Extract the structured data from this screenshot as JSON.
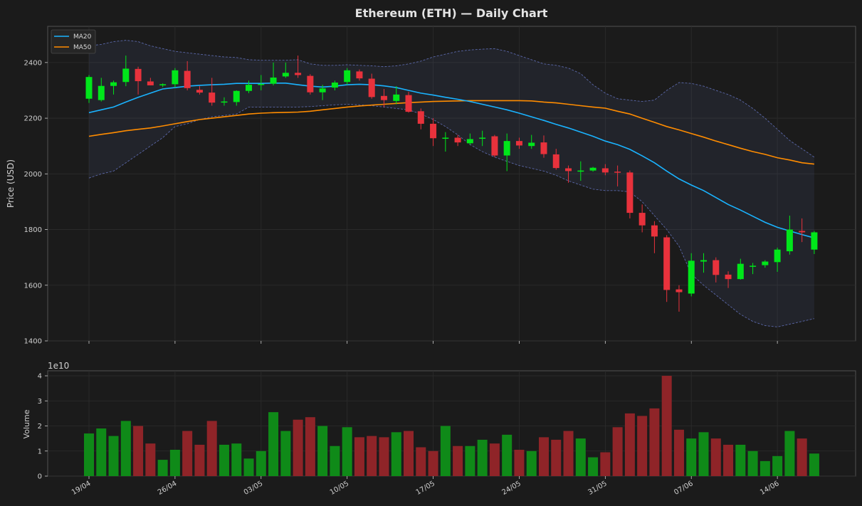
{
  "chart_data": [
    {
      "type": "candlestick",
      "title": "Ethereum (ETH) — Daily Chart",
      "ylabel": "Price (USD)",
      "ylim": [
        1400,
        2530
      ],
      "yticks": [
        1400,
        1600,
        1800,
        2000,
        2200,
        2400
      ],
      "xticks": [
        "19/04",
        "26/04",
        "03/05",
        "10/05",
        "17/05",
        "24/05",
        "31/05",
        "07/06",
        "14/06"
      ],
      "xtick_index": [
        0,
        7,
        14,
        21,
        28,
        35,
        42,
        49,
        56
      ],
      "legend": {
        "position": "top-left",
        "entries": [
          "MA20",
          "MA50"
        ]
      },
      "colors": {
        "up": "#00e61a",
        "down": "#e8323c",
        "ma20": "#1ab3ff",
        "ma50": "#ff8c00",
        "band": "#5a67a8"
      },
      "grid": true,
      "candles": [
        [
          2270,
          2355,
          2255,
          2348
        ],
        [
          2265,
          2345,
          2260,
          2316
        ],
        [
          2316,
          2335,
          2285,
          2329
        ],
        [
          2330,
          2425,
          2315,
          2378
        ],
        [
          2377,
          2385,
          2285,
          2333
        ],
        [
          2332,
          2345,
          2318,
          2318
        ],
        [
          2318,
          2325,
          2312,
          2322
        ],
        [
          2322,
          2380,
          2310,
          2372
        ],
        [
          2370,
          2405,
          2300,
          2308
        ],
        [
          2302,
          2315,
          2285,
          2292
        ],
        [
          2292,
          2345,
          2245,
          2256
        ],
        [
          2258,
          2275,
          2245,
          2260
        ],
        [
          2258,
          2300,
          2245,
          2298
        ],
        [
          2298,
          2335,
          2290,
          2320
        ],
        [
          2320,
          2355,
          2300,
          2323
        ],
        [
          2324,
          2400,
          2318,
          2346
        ],
        [
          2350,
          2400,
          2345,
          2363
        ],
        [
          2363,
          2425,
          2345,
          2355
        ],
        [
          2352,
          2358,
          2285,
          2293
        ],
        [
          2293,
          2320,
          2265,
          2307
        ],
        [
          2310,
          2335,
          2300,
          2328
        ],
        [
          2330,
          2380,
          2320,
          2372
        ],
        [
          2368,
          2375,
          2335,
          2343
        ],
        [
          2342,
          2360,
          2270,
          2276
        ],
        [
          2280,
          2305,
          2240,
          2265
        ],
        [
          2262,
          2315,
          2250,
          2285
        ],
        [
          2283,
          2295,
          2220,
          2223
        ],
        [
          2225,
          2235,
          2160,
          2180
        ],
        [
          2180,
          2200,
          2100,
          2128
        ],
        [
          2130,
          2150,
          2080,
          2130
        ],
        [
          2130,
          2140,
          2100,
          2113
        ],
        [
          2110,
          2145,
          2105,
          2125
        ],
        [
          2128,
          2155,
          2100,
          2130
        ],
        [
          2135,
          2140,
          2060,
          2066
        ],
        [
          2066,
          2145,
          2010,
          2118
        ],
        [
          2118,
          2130,
          2090,
          2102
        ],
        [
          2100,
          2140,
          2090,
          2112
        ],
        [
          2113,
          2138,
          2058,
          2071
        ],
        [
          2070,
          2090,
          2015,
          2021
        ],
        [
          2020,
          2030,
          1968,
          2010
        ],
        [
          2008,
          2045,
          1975,
          2012
        ],
        [
          2012,
          2025,
          2008,
          2022
        ],
        [
          2020,
          2035,
          1995,
          2005
        ],
        [
          2008,
          2030,
          1955,
          2005
        ],
        [
          2005,
          2012,
          1840,
          1860
        ],
        [
          1860,
          1890,
          1790,
          1815
        ],
        [
          1815,
          1830,
          1715,
          1775
        ],
        [
          1772,
          1780,
          1540,
          1583
        ],
        [
          1585,
          1600,
          1505,
          1575
        ],
        [
          1570,
          1715,
          1560,
          1688
        ],
        [
          1685,
          1715,
          1645,
          1690
        ],
        [
          1690,
          1700,
          1610,
          1637
        ],
        [
          1638,
          1650,
          1590,
          1622
        ],
        [
          1622,
          1695,
          1620,
          1677
        ],
        [
          1668,
          1680,
          1640,
          1670
        ],
        [
          1672,
          1690,
          1663,
          1685
        ],
        [
          1683,
          1735,
          1648,
          1728
        ],
        [
          1722,
          1850,
          1710,
          1800
        ],
        [
          1795,
          1840,
          1755,
          1790
        ],
        [
          1728,
          1795,
          1712,
          1790
        ]
      ],
      "ma20": [
        2220,
        2230,
        2240,
        2258,
        2275,
        2290,
        2305,
        2310,
        2315,
        2318,
        2320,
        2322,
        2325,
        2325,
        2325,
        2326,
        2326,
        2320,
        2315,
        2312,
        2315,
        2320,
        2322,
        2320,
        2316,
        2310,
        2300,
        2290,
        2283,
        2275,
        2268,
        2260,
        2250,
        2240,
        2230,
        2218,
        2205,
        2192,
        2178,
        2165,
        2150,
        2135,
        2118,
        2105,
        2088,
        2065,
        2040,
        2010,
        1982,
        1960,
        1940,
        1915,
        1890,
        1870,
        1848,
        1826,
        1808,
        1795,
        1782,
        1770
      ],
      "ma50": [
        2135,
        2142,
        2148,
        2155,
        2160,
        2165,
        2172,
        2180,
        2188,
        2195,
        2200,
        2205,
        2210,
        2215,
        2218,
        2220,
        2221,
        2222,
        2225,
        2230,
        2235,
        2240,
        2244,
        2247,
        2250,
        2253,
        2256,
        2258,
        2260,
        2261,
        2262,
        2263,
        2263,
        2263,
        2263,
        2263,
        2262,
        2258,
        2255,
        2250,
        2245,
        2240,
        2236,
        2225,
        2215,
        2200,
        2185,
        2170,
        2158,
        2145,
        2132,
        2118,
        2105,
        2092,
        2080,
        2070,
        2058,
        2050,
        2040,
        2035
      ],
      "bb_upper": [
        2460,
        2465,
        2475,
        2480,
        2475,
        2460,
        2450,
        2440,
        2435,
        2430,
        2425,
        2420,
        2418,
        2410,
        2408,
        2408,
        2408,
        2410,
        2395,
        2390,
        2390,
        2392,
        2390,
        2388,
        2385,
        2388,
        2395,
        2405,
        2420,
        2430,
        2440,
        2445,
        2448,
        2450,
        2440,
        2425,
        2410,
        2395,
        2390,
        2380,
        2360,
        2320,
        2290,
        2270,
        2265,
        2260,
        2265,
        2300,
        2328,
        2325,
        2315,
        2300,
        2285,
        2265,
        2235,
        2200,
        2160,
        2120,
        2090,
        2060
      ],
      "bb_lower": [
        1985,
        2000,
        2010,
        2040,
        2070,
        2100,
        2130,
        2170,
        2180,
        2195,
        2205,
        2210,
        2215,
        2240,
        2240,
        2240,
        2240,
        2240,
        2242,
        2245,
        2248,
        2250,
        2248,
        2245,
        2240,
        2235,
        2230,
        2215,
        2195,
        2170,
        2140,
        2105,
        2080,
        2060,
        2045,
        2030,
        2020,
        2010,
        1995,
        1975,
        1960,
        1945,
        1940,
        1940,
        1935,
        1900,
        1850,
        1800,
        1740,
        1640,
        1600,
        1565,
        1530,
        1495,
        1470,
        1455,
        1450,
        1460,
        1470,
        1480
      ]
    },
    {
      "type": "bar",
      "ylabel": "Volume",
      "scale_label": "1e10",
      "ylim": [
        0,
        4.2
      ],
      "yticks": [
        0,
        1,
        2,
        3,
        4
      ],
      "values": [
        1.7,
        1.9,
        1.6,
        2.2,
        2.0,
        1.3,
        0.65,
        1.05,
        1.8,
        1.25,
        2.2,
        1.25,
        1.3,
        0.7,
        1.0,
        2.55,
        1.8,
        2.25,
        2.35,
        2.0,
        1.2,
        1.95,
        1.55,
        1.6,
        1.55,
        1.75,
        1.8,
        1.15,
        1.0,
        2.0,
        1.2,
        1.2,
        1.45,
        1.3,
        1.65,
        1.05,
        1.0,
        1.55,
        1.45,
        1.8,
        1.5,
        0.75,
        0.95,
        1.95,
        2.5,
        2.4,
        2.7,
        4.0,
        1.85,
        1.5,
        1.75,
        1.5,
        1.25,
        1.25,
        1.0,
        0.6,
        0.8,
        1.8,
        1.5,
        0.9
      ],
      "colors": {
        "up": "#0f8a18",
        "down": "#8f2428"
      }
    }
  ]
}
